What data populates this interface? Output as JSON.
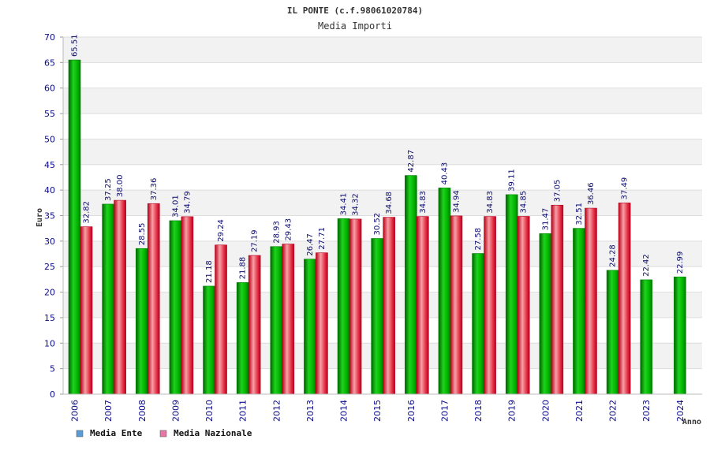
{
  "chart_data": {
    "type": "bar",
    "title": "IL PONTE (c.f.98061020784)",
    "subtitle": "Media Importi",
    "ylabel": "Euro",
    "xlabel": "Anno",
    "ylim": [
      0,
      70
    ],
    "y_ticks": [
      0,
      5,
      10,
      15,
      20,
      25,
      30,
      35,
      40,
      45,
      50,
      55,
      60,
      65,
      70
    ],
    "grid": "horizontal bands",
    "legend_position": "bottom-left",
    "categories": [
      "2006",
      "2007",
      "2008",
      "2009",
      "2010",
      "2011",
      "2012",
      "2013",
      "2014",
      "2015",
      "2016",
      "2017",
      "2018",
      "2019",
      "2020",
      "2021",
      "2022",
      "2023",
      "2024"
    ],
    "series": [
      {
        "name": "Media Ente",
        "color": "#00b000",
        "legend_color": "#5b9bd5",
        "values": [
          65.51,
          37.25,
          28.55,
          34.01,
          21.18,
          21.88,
          28.93,
          26.47,
          34.41,
          30.52,
          42.87,
          40.43,
          27.58,
          39.11,
          31.47,
          32.51,
          24.28,
          22.42,
          22.99
        ],
        "labels": [
          "65.51",
          "37.25",
          "28.55",
          "34.01",
          "21.18",
          "21.88",
          "28.93",
          "26.47",
          "34.41",
          "30.52",
          "42.87",
          "40.43",
          "27.58",
          "39.11",
          "31.47",
          "32.51",
          "24.28",
          "22.42",
          "22.99"
        ]
      },
      {
        "name": "Media Nazionale",
        "color": "#e0283c",
        "legend_color": "#e377a6",
        "values": [
          32.82,
          38.0,
          37.36,
          34.79,
          29.24,
          27.19,
          29.43,
          27.71,
          34.32,
          34.68,
          34.83,
          34.94,
          34.83,
          34.85,
          37.05,
          36.46,
          37.49,
          null,
          null
        ],
        "labels": [
          "32.82",
          "38.00",
          "37.36",
          "34.79",
          "29.24",
          "27.19",
          "29.43",
          "27.71",
          "34.32",
          "34.68",
          "34.83",
          "34.94",
          "34.83",
          "34.85",
          "37.05",
          "36.46",
          "37.49",
          null,
          null
        ]
      }
    ]
  }
}
